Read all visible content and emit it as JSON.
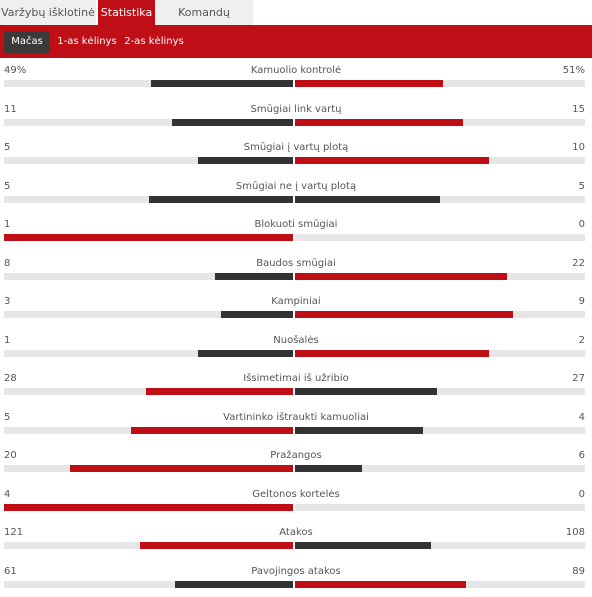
{
  "tabs": [
    {
      "label": "Varžybų išklotinė",
      "active": false
    },
    {
      "label": "Statistika",
      "active": true
    },
    {
      "label": "Komandų sudėtys",
      "active": false
    }
  ],
  "periods": [
    {
      "label": "Mačas",
      "active": true
    },
    {
      "label": "1-as kėlinys",
      "active": false
    },
    {
      "label": "2-as kėlinys",
      "active": false
    }
  ],
  "colors": {
    "accent": "#c00e17",
    "dark": "#333333",
    "track": "#e6e6e6"
  },
  "stats": [
    {
      "label": "Kamuolio kontrolė",
      "home": "49%",
      "away": "51%",
      "home_share": 0.49,
      "away_share": 0.51
    },
    {
      "label": "Smūgiai link vartų",
      "home": "11",
      "away": "15",
      "home_share": 0.42,
      "away_share": 0.58
    },
    {
      "label": "Smūgiai į vartų plotą",
      "home": "5",
      "away": "10",
      "home_share": 0.33,
      "away_share": 0.67
    },
    {
      "label": "Smūgiai ne į vartų plotą",
      "home": "5",
      "away": "5",
      "home_share": 0.5,
      "away_share": 0.5
    },
    {
      "label": "Blokuoti smūgiai",
      "home": "1",
      "away": "0",
      "home_share": 1.0,
      "away_share": 0.0
    },
    {
      "label": "Baudos smūgiai",
      "home": "8",
      "away": "22",
      "home_share": 0.27,
      "away_share": 0.73
    },
    {
      "label": "Kampiniai",
      "home": "3",
      "away": "9",
      "home_share": 0.25,
      "away_share": 0.75
    },
    {
      "label": "Nuošalės",
      "home": "1",
      "away": "2",
      "home_share": 0.33,
      "away_share": 0.67
    },
    {
      "label": "Išsimetimai iš užribio",
      "home": "28",
      "away": "27",
      "home_share": 0.51,
      "away_share": 0.49
    },
    {
      "label": "Vartininko ištraukti kamuoliai",
      "home": "5",
      "away": "4",
      "home_share": 0.56,
      "away_share": 0.44
    },
    {
      "label": "Pražangos",
      "home": "20",
      "away": "6",
      "home_share": 0.77,
      "away_share": 0.23
    },
    {
      "label": "Geltonos kortelės",
      "home": "4",
      "away": "0",
      "home_share": 1.0,
      "away_share": 0.0
    },
    {
      "label": "Atakos",
      "home": "121",
      "away": "108",
      "home_share": 0.53,
      "away_share": 0.47
    },
    {
      "label": "Pavojingos atakos",
      "home": "61",
      "away": "89",
      "home_share": 0.41,
      "away_share": 0.59
    }
  ]
}
